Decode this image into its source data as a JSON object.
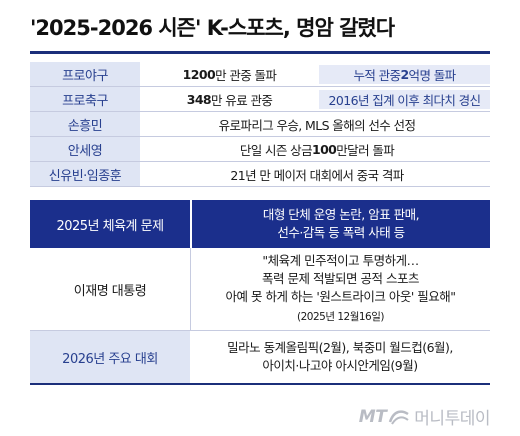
{
  "title": "'2025-2026 시즌' K-스포츠, 명암 갈렸다",
  "records": [
    {
      "label": "프로야구",
      "left": {
        "num": "1200",
        "rest": "만 관중 돌파"
      },
      "right": {
        "pre": "누적 관중 ",
        "num": "2",
        "rest": "억명 돌파"
      }
    },
    {
      "label": "프로축구",
      "left": {
        "num": "348",
        "rest": "만 유료 관중"
      },
      "right": {
        "pre": "",
        "num": "",
        "rest": "2016년 집계 이후 최다치 경신"
      }
    },
    {
      "label": "손흥민",
      "text": "유로파리그 우승, MLS 올해의 선수 선정"
    },
    {
      "label": "안세영",
      "text_pre": "단일 시즌 상금 ",
      "text_num": "100",
      "text_post": "만달러 돌파"
    },
    {
      "label": "신유빈·임종훈",
      "text": "21년 만 메이저 대회에서 중국 격파"
    }
  ],
  "issues": {
    "label": "2025년 체육계 문제",
    "lines": [
      "대형 단체 운영 논란, 암표 판매,",
      "선수·감독 등 폭력 사태 등"
    ]
  },
  "quote": {
    "speaker": "이재명 대통령",
    "lines": [
      "\"체육계 민주적이고 투명하게…",
      "폭력 문제 적발되면 공적 스포츠",
      "아예 못 하게 하는 '원스트라이크 아웃' 필요해\""
    ],
    "date": "(2025년 12월16일)"
  },
  "events": {
    "label": "2026년 주요 대회",
    "lines": [
      "밀라노 동계올림픽(2월), 북중미 월드컵(6월),",
      "아이치·나고야 아시안게임(9월)"
    ]
  },
  "logo": {
    "mt": "MT",
    "text": "머니투데이",
    "icon": "mt-swoosh-icon"
  },
  "colors": {
    "navy": "#1b2f8c",
    "light_blue": "#dfe5f4",
    "label_text": "#28408f"
  }
}
